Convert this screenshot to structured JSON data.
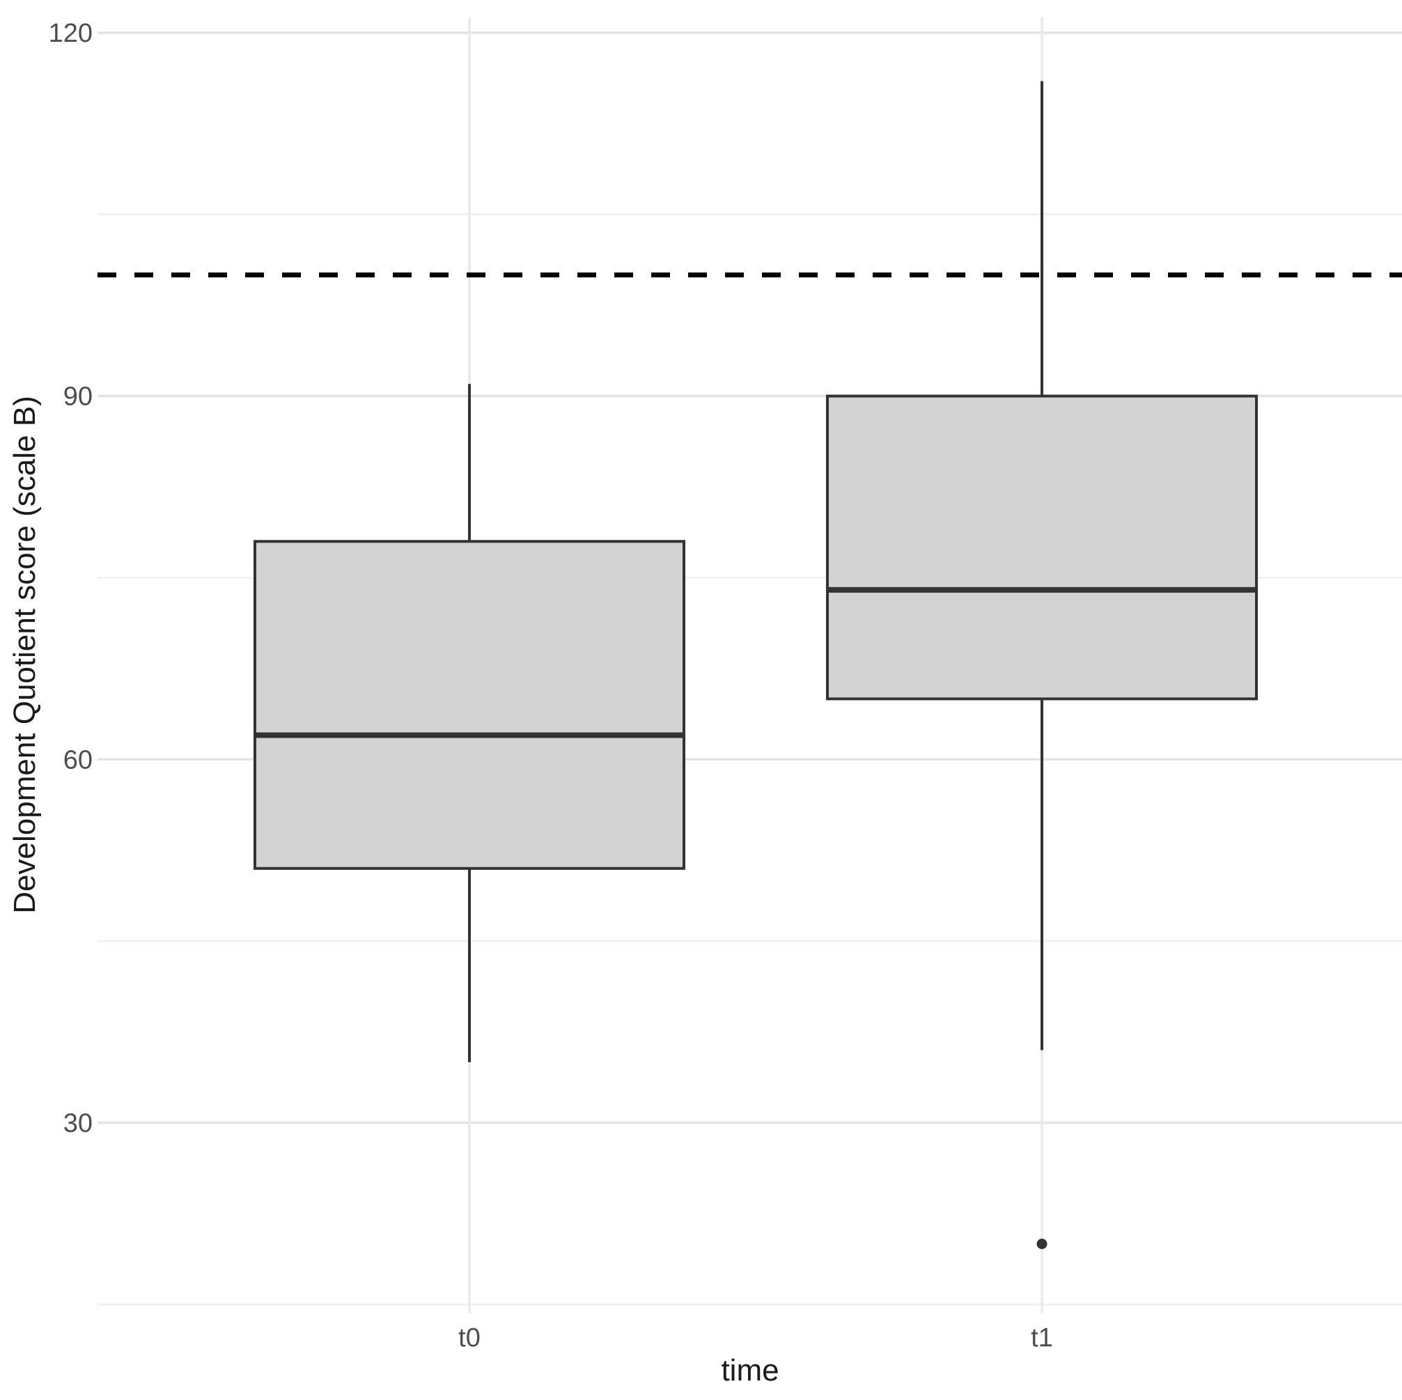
{
  "chart_data": {
    "type": "boxplot",
    "title": "",
    "xlabel": "time",
    "ylabel": "Development Quotient score (scale B)",
    "categories": [
      "t0",
      "t1"
    ],
    "series": [
      {
        "name": "t0",
        "whisker_low": 35,
        "q1": 51,
        "median": 62,
        "q3": 78,
        "whisker_high": 91,
        "outliers": []
      },
      {
        "name": "t1",
        "whisker_low": 36,
        "q1": 65,
        "median": 74,
        "q3": 90,
        "whisker_high": 116,
        "outliers": [
          20
        ]
      }
    ],
    "reference_line": {
      "y": 100,
      "style": "dashed"
    },
    "y_ticks": [
      30,
      60,
      90,
      120
    ],
    "y_minor_ticks": [
      15,
      45,
      75,
      105
    ],
    "ylim": [
      14.3,
      122.7
    ],
    "grid": true,
    "legend_position": "none"
  },
  "colors": {
    "background": "#ffffff",
    "box_fill": "#d3d3d3",
    "box_stroke": "#333333",
    "median_stroke": "#333333",
    "outlier_fill": "#333333",
    "reference_line": "#000000",
    "grid_major": "#e4e4e4",
    "grid_minor": "#f1f1f1",
    "grid_vertical": "#e9e9e9",
    "tick_label": "#4d4d4d",
    "axis_title": "#1a1a1a"
  }
}
